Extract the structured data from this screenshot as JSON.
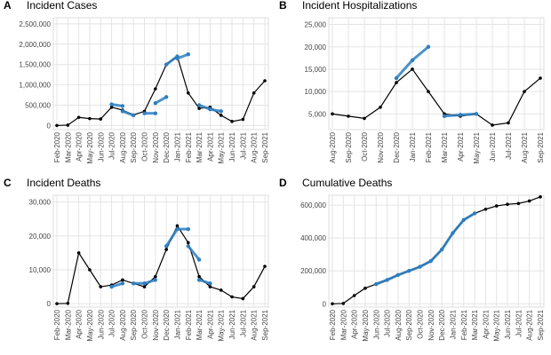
{
  "chart_data": [
    {
      "panel": "A",
      "type": "line",
      "title": "Incident Cases",
      "grid": true,
      "xticks": [
        "Feb-2020",
        "Mar-2020",
        "Apr-2020",
        "May-2020",
        "Jun-2020",
        "Jul-2020",
        "Aug-2020",
        "Sep-2020",
        "Oct-2020",
        "Nov-2020",
        "Dec-2020",
        "Jan-2021",
        "Feb-2021",
        "Mar-2021",
        "Apr-2021",
        "May-2021",
        "Jun-2021",
        "Jul-2021",
        "Aug-2021",
        "Sep-2021"
      ],
      "ylim": [
        -100000,
        2650000
      ],
      "yticks": [
        {
          "value": 0,
          "label": "0"
        },
        {
          "value": 500000,
          "label": "500,000"
        },
        {
          "value": 1000000,
          "label": "1,000,000"
        },
        {
          "value": 1500000,
          "label": "1,500,000"
        },
        {
          "value": 2000000,
          "label": "2,000,000"
        },
        {
          "value": 2500000,
          "label": "2,500,000"
        }
      ],
      "series": [
        {
          "color": "#000000",
          "x": [
            "Feb-2020",
            "Mar-2020",
            "Apr-2020",
            "May-2020",
            "Jun-2020",
            "Jul-2020",
            "Aug-2020",
            "Sep-2020",
            "Oct-2020",
            "Nov-2020",
            "Dec-2020",
            "Jan-2021",
            "Feb-2021",
            "Mar-2021",
            "Apr-2021",
            "May-2021",
            "Jun-2021",
            "Jul-2021",
            "Aug-2021",
            "Sep-2021"
          ],
          "values": [
            0,
            10000,
            200000,
            170000,
            160000,
            450000,
            380000,
            260000,
            350000,
            900000,
            1500000,
            1700000,
            800000,
            420000,
            450000,
            250000,
            100000,
            150000,
            800000,
            1100000
          ]
        },
        {
          "color": "#2e7fc1",
          "x": [
            "Jul-2020",
            "Aug-2020"
          ],
          "values": [
            520000,
            480000
          ]
        },
        {
          "color": "#2e7fc1",
          "x": [
            "Aug-2020",
            "Sep-2020"
          ],
          "values": [
            350000,
            250000
          ]
        },
        {
          "color": "#2e7fc1",
          "x": [
            "Oct-2020",
            "Nov-2020"
          ],
          "values": [
            300000,
            300000
          ]
        },
        {
          "color": "#2e7fc1",
          "x": [
            "Nov-2020",
            "Dec-2020"
          ],
          "values": [
            550000,
            700000
          ]
        },
        {
          "color": "#2e7fc1",
          "x": [
            "Dec-2020",
            "Jan-2021"
          ],
          "values": [
            1500000,
            1700000
          ]
        },
        {
          "color": "#2e7fc1",
          "x": [
            "Jan-2021",
            "Feb-2021"
          ],
          "values": [
            1650000,
            1750000
          ]
        },
        {
          "color": "#2e7fc1",
          "x": [
            "Mar-2021",
            "Apr-2021"
          ],
          "values": [
            500000,
            400000
          ]
        },
        {
          "color": "#2e7fc1",
          "x": [
            "Apr-2021",
            "May-2021"
          ],
          "values": [
            400000,
            350000
          ]
        }
      ]
    },
    {
      "panel": "B",
      "type": "line",
      "title": "Incident Hospitalizations",
      "grid": true,
      "xticks": [
        "Aug-2020",
        "Sep-2020",
        "Oct-2020",
        "Nov-2020",
        "Dec-2020",
        "Jan-2021",
        "Feb-2021",
        "Mar-2021",
        "Apr-2021",
        "May-2021",
        "Jun-2021",
        "Jul-2021",
        "Aug-2021",
        "Sep-2021"
      ],
      "ylim": [
        1500,
        26500
      ],
      "yticks": [
        {
          "value": 5000,
          "label": "5,000"
        },
        {
          "value": 10000,
          "label": "10,000"
        },
        {
          "value": 15000,
          "label": "15,000"
        },
        {
          "value": 20000,
          "label": "20,000"
        },
        {
          "value": 25000,
          "label": "25,000"
        }
      ],
      "series": [
        {
          "color": "#000000",
          "x": [
            "Aug-2020",
            "Sep-2020",
            "Oct-2020",
            "Nov-2020",
            "Dec-2020",
            "Jan-2021",
            "Feb-2021",
            "Mar-2021",
            "Apr-2021",
            "May-2021",
            "Jun-2021",
            "Jul-2021",
            "Aug-2021",
            "Sep-2021"
          ],
          "values": [
            5000,
            4500,
            4000,
            6500,
            12000,
            15000,
            10000,
            5000,
            4500,
            5000,
            2500,
            3000,
            10000,
            13000
          ]
        },
        {
          "color": "#2e7fc1",
          "x": [
            "Dec-2020",
            "Jan-2021",
            "Feb-2021"
          ],
          "values": [
            13000,
            17000,
            20000
          ]
        },
        {
          "color": "#2e7fc1",
          "x": [
            "Mar-2021",
            "Apr-2021",
            "May-2021"
          ],
          "values": [
            4500,
            4800,
            5000
          ]
        }
      ]
    },
    {
      "panel": "C",
      "type": "line",
      "title": "Incident Deaths",
      "grid": true,
      "xticks": [
        "Feb-2020",
        "Mar-2020",
        "Apr-2020",
        "May-2020",
        "Jun-2020",
        "Jul-2020",
        "Aug-2020",
        "Sep-2020",
        "Oct-2020",
        "Nov-2020",
        "Dec-2020",
        "Jan-2021",
        "Feb-2021",
        "Mar-2021",
        "Apr-2021",
        "May-2021",
        "Jun-2021",
        "Jul-2021",
        "Aug-2021",
        "Sep-2021"
      ],
      "ylim": [
        -1000,
        32000
      ],
      "yticks": [
        {
          "value": 0,
          "label": "0"
        },
        {
          "value": 10000,
          "label": "10,000"
        },
        {
          "value": 20000,
          "label": "20,000"
        },
        {
          "value": 30000,
          "label": "30,000"
        }
      ],
      "series": [
        {
          "color": "#000000",
          "x": [
            "Feb-2020",
            "Mar-2020",
            "Apr-2020",
            "May-2020",
            "Jun-2020",
            "Jul-2020",
            "Aug-2020",
            "Sep-2020",
            "Oct-2020",
            "Nov-2020",
            "Dec-2020",
            "Jan-2021",
            "Feb-2021",
            "Mar-2021",
            "Apr-2021",
            "May-2021",
            "Jun-2021",
            "Jul-2021",
            "Aug-2021",
            "Sep-2021"
          ],
          "values": [
            0,
            100,
            15000,
            10000,
            5000,
            5500,
            7000,
            6000,
            5000,
            8000,
            16000,
            23000,
            18000,
            8000,
            5000,
            4000,
            2000,
            1500,
            5000,
            11000
          ]
        },
        {
          "color": "#2e7fc1",
          "x": [
            "Jul-2020",
            "Aug-2020"
          ],
          "values": [
            5000,
            6000
          ]
        },
        {
          "color": "#2e7fc1",
          "x": [
            "Sep-2020",
            "Oct-2020",
            "Nov-2020"
          ],
          "values": [
            6000,
            6000,
            7000
          ]
        },
        {
          "color": "#2e7fc1",
          "x": [
            "Dec-2020",
            "Jan-2021",
            "Feb-2021"
          ],
          "values": [
            17000,
            22000,
            22000
          ]
        },
        {
          "color": "#2e7fc1",
          "x": [
            "Feb-2021",
            "Mar-2021"
          ],
          "values": [
            17000,
            13000
          ]
        },
        {
          "color": "#2e7fc1",
          "x": [
            "Mar-2021",
            "Apr-2021"
          ],
          "values": [
            7000,
            6000
          ]
        }
      ]
    },
    {
      "panel": "D",
      "type": "line",
      "title": "Cumulative Deaths",
      "grid": true,
      "xticks": [
        "Feb-2020",
        "Mar-2020",
        "Apr-2020",
        "May-2020",
        "Jun-2020",
        "Jul-2020",
        "Aug-2020",
        "Sep-2020",
        "Oct-2020",
        "Nov-2020",
        "Dec-2020",
        "Jan-2021",
        "Feb-2021",
        "Mar-2021",
        "Apr-2021",
        "May-2021",
        "Jun-2021",
        "Jul-2021",
        "Aug-2021",
        "Sep-2021"
      ],
      "ylim": [
        -20000,
        660000
      ],
      "yticks": [
        {
          "value": 0,
          "label": "0"
        },
        {
          "value": 200000,
          "label": "200,000"
        },
        {
          "value": 400000,
          "label": "400,000"
        },
        {
          "value": 600000,
          "label": "600,000"
        }
      ],
      "series": [
        {
          "color": "#000000",
          "x": [
            "Feb-2020",
            "Mar-2020",
            "Apr-2020",
            "May-2020",
            "Jun-2020",
            "Jul-2020",
            "Aug-2020",
            "Sep-2020",
            "Oct-2020",
            "Nov-2020",
            "Dec-2020",
            "Jan-2021",
            "Feb-2021",
            "Mar-2021",
            "Apr-2021",
            "May-2021",
            "Jun-2021",
            "Jul-2021",
            "Aug-2021",
            "Sep-2021"
          ],
          "values": [
            0,
            2000,
            50000,
            95000,
            120000,
            145000,
            175000,
            200000,
            225000,
            260000,
            330000,
            430000,
            510000,
            550000,
            575000,
            595000,
            605000,
            610000,
            625000,
            650000
          ]
        },
        {
          "color": "#2e7fc1",
          "x": [
            "Jun-2020",
            "Jul-2020",
            "Aug-2020",
            "Sep-2020",
            "Oct-2020",
            "Nov-2020",
            "Dec-2020",
            "Jan-2021",
            "Feb-2021",
            "Mar-2021"
          ],
          "values": [
            120000,
            145000,
            175000,
            200000,
            225000,
            260000,
            330000,
            430000,
            510000,
            550000
          ]
        }
      ]
    }
  ]
}
